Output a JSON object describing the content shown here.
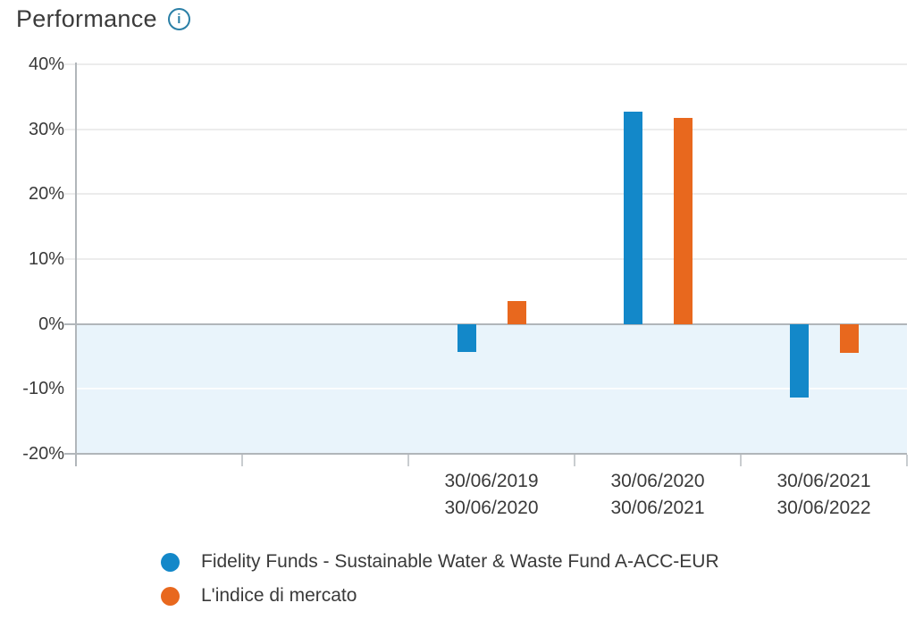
{
  "header": {
    "title": "Performance",
    "info_icon": "i"
  },
  "chart_data": {
    "type": "bar",
    "title": "Performance",
    "ylim": [
      -20,
      40
    ],
    "yticks": [
      40,
      30,
      20,
      10,
      0,
      -10,
      -20
    ],
    "ytick_labels": [
      "40%",
      "30%",
      "20%",
      "10%",
      "0%",
      "-10%",
      "-20%"
    ],
    "grid": true,
    "negative_area_shaded": true,
    "num_slots": 5,
    "first_data_slot": 2,
    "categories": [
      [
        "30/06/2019",
        "30/06/2020"
      ],
      [
        "30/06/2020",
        "30/06/2021"
      ],
      [
        "30/06/2021",
        "30/06/2022"
      ]
    ],
    "series": [
      {
        "name": "Fidelity Funds - Sustainable Water & Waste Fund A-ACC-EUR",
        "color": "#1388C9",
        "values": [
          -4.3,
          32.7,
          -11.3
        ]
      },
      {
        "name": "L'indice di mercato",
        "color": "#E8681E",
        "values": [
          3.6,
          31.8,
          -4.4
        ]
      }
    ],
    "legend_position": "bottom-left"
  },
  "colors": {
    "fund_bar": "#1388C9",
    "index_bar": "#E8681E",
    "negative_region": "#E9F4FB",
    "strong_line": "#B1B6BA",
    "grid_line": "#ECECEC",
    "negative_grid_line": "rgba(255,255,255,0.8)",
    "axis_text": "#3A3A3A",
    "info_icon": "#2A7FA6"
  },
  "legend": {
    "items": [
      {
        "label": "Fidelity Funds - Sustainable Water & Waste Fund A-ACC-EUR",
        "color": "#1388C9"
      },
      {
        "label": "L'indice di mercato",
        "color": "#E8681E"
      }
    ]
  }
}
